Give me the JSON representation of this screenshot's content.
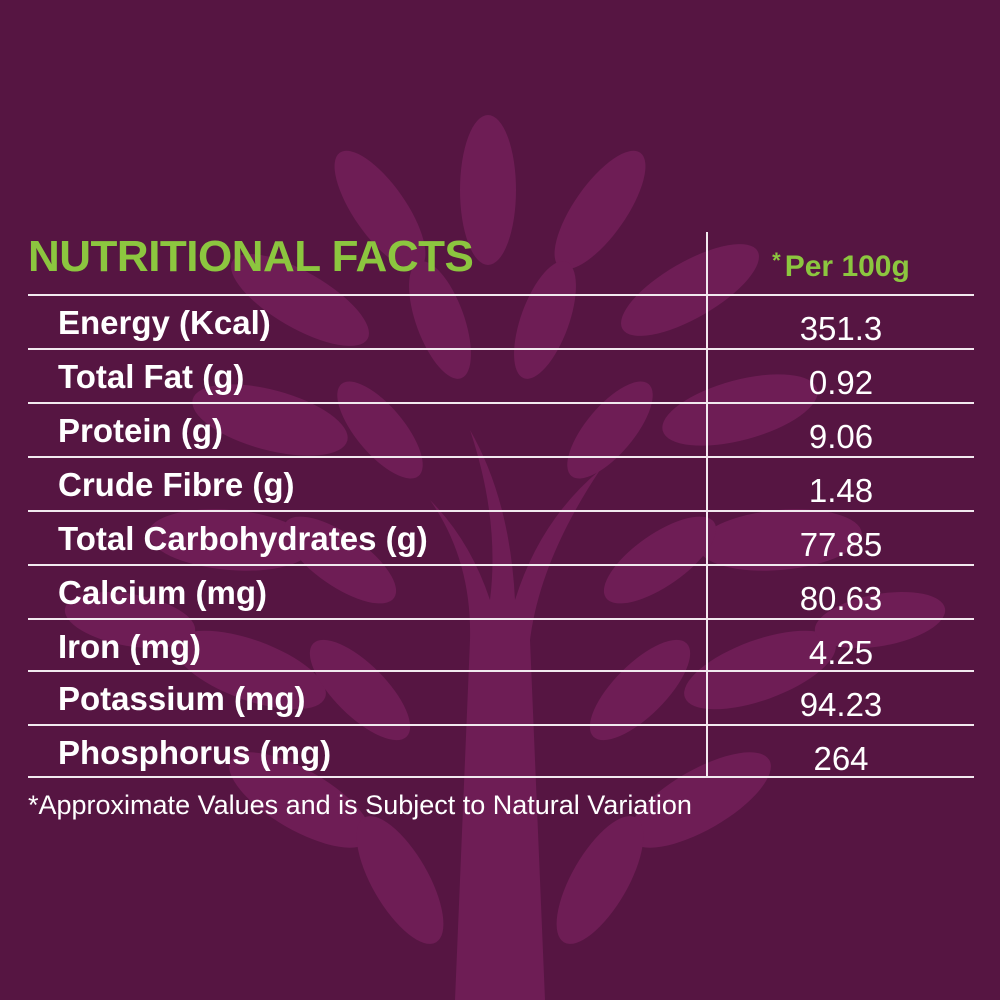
{
  "panel": {
    "title": "NUTRITIONAL FACTS",
    "column_header_marker": "*",
    "column_header": "Per 100g",
    "footnote": "*Approximate Values and is Subject to Natural Variation"
  },
  "colors": {
    "background": "#561542",
    "accent_green": "#8cc63f",
    "text": "#ffffff",
    "rule": "#f2e9ef",
    "tree_motif": "#6e1d55"
  },
  "rows": [
    {
      "label": "Energy (Kcal)",
      "value": "351.3"
    },
    {
      "label": "Total Fat (g)",
      "value": "0.92"
    },
    {
      "label": "Protein (g)",
      "value": "9.06"
    },
    {
      "label": "Crude Fibre (g)",
      "value": "1.48"
    },
    {
      "label": "Total Carbohydrates (g)",
      "value": "77.85"
    },
    {
      "label": "Calcium (mg)",
      "value": "80.63"
    },
    {
      "label": "Iron (mg)",
      "value": "4.25"
    },
    {
      "label": "Potassium (mg)",
      "value": "94.23"
    },
    {
      "label": "Phosphorus (mg)",
      "value": "264"
    }
  ]
}
